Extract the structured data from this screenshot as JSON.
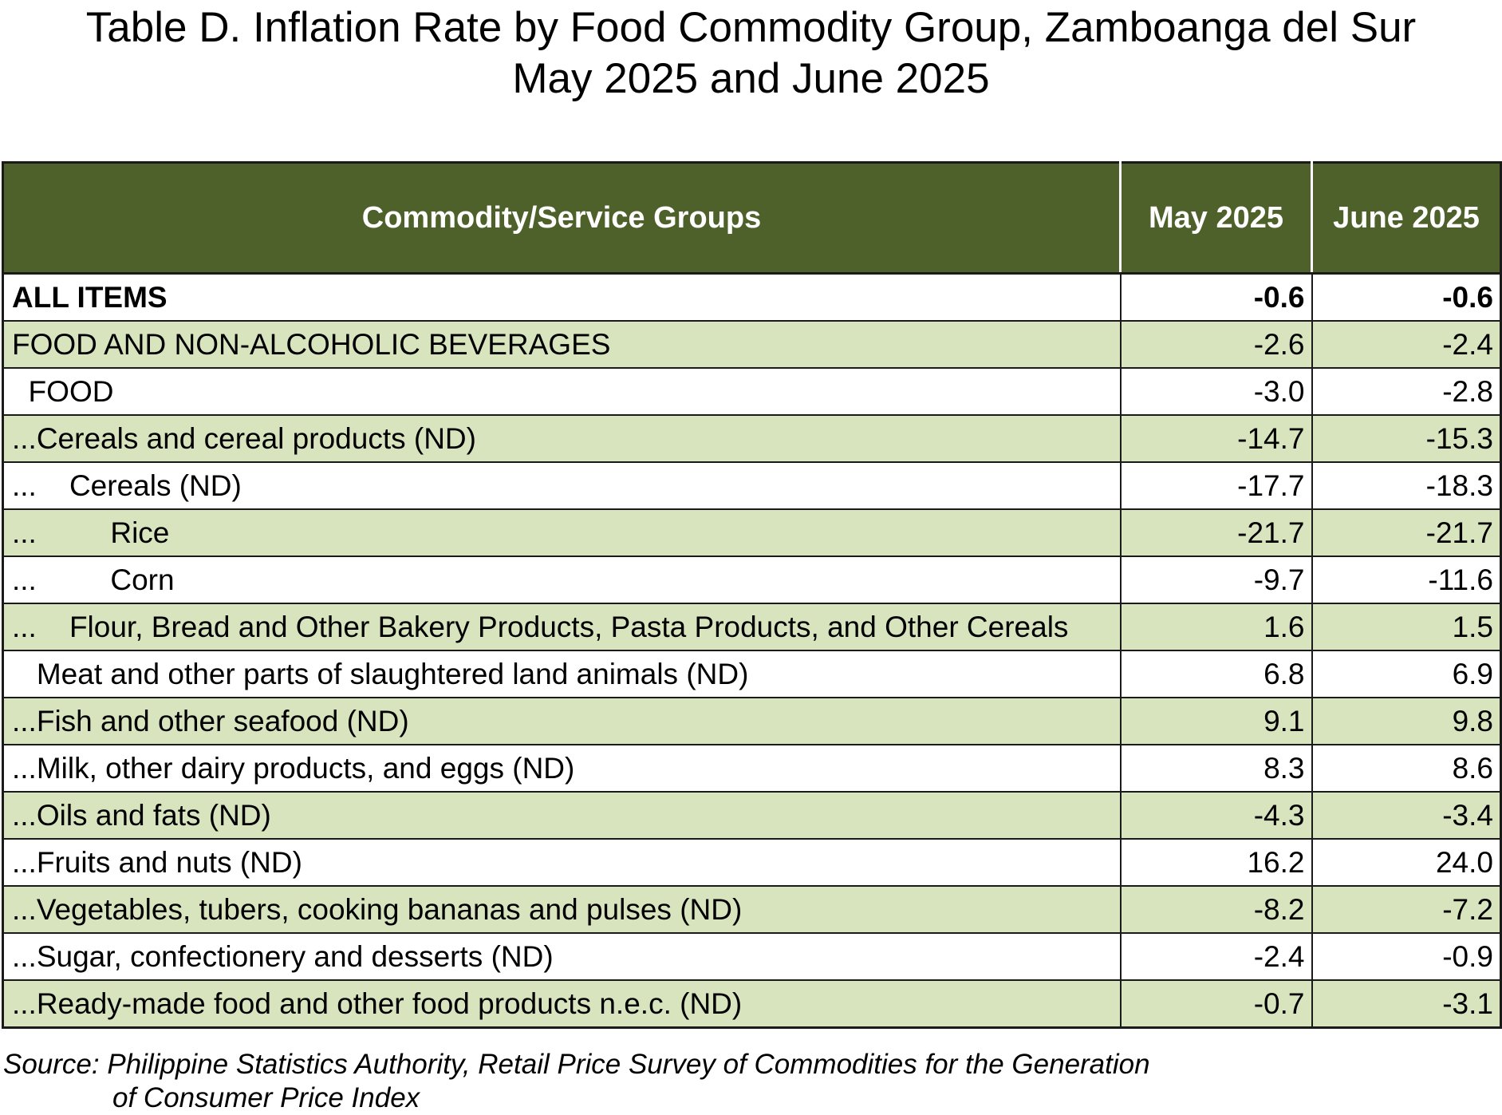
{
  "title": {
    "line1": "Table D. Inflation Rate by Food Commodity Group, Zamboanga del Sur",
    "line2": "May 2025 and June 2025"
  },
  "table": {
    "headers": [
      "Commodity/Service Groups",
      "May 2025",
      "June 2025"
    ],
    "rows": [
      {
        "label": "ALL ITEMS",
        "may": "-0.6",
        "june": "-0.6",
        "bold": true,
        "shaded": false
      },
      {
        "label": "FOOD AND NON-ALCOHOLIC BEVERAGES",
        "may": "-2.6",
        "june": "-2.4",
        "bold": false,
        "shaded": true
      },
      {
        "label": "  FOOD",
        "may": "-3.0",
        "june": "-2.8",
        "bold": false,
        "shaded": false
      },
      {
        "label": "...Cereals and cereal products (ND)",
        "may": "-14.7",
        "june": "-15.3",
        "bold": false,
        "shaded": true
      },
      {
        "label": "...    Cereals (ND)",
        "may": "-17.7",
        "june": "-18.3",
        "bold": false,
        "shaded": false
      },
      {
        "label": "...         Rice",
        "may": "-21.7",
        "june": "-21.7",
        "bold": false,
        "shaded": true
      },
      {
        "label": "...         Corn",
        "may": "-9.7",
        "june": "-11.6",
        "bold": false,
        "shaded": false
      },
      {
        "label": "...    Flour, Bread and Other Bakery Products, Pasta Products, and Other Cereals",
        "may": "1.6",
        "june": "1.5",
        "bold": false,
        "shaded": true
      },
      {
        "label": "   Meat and other parts of slaughtered land animals (ND)",
        "may": "6.8",
        "june": "6.9",
        "bold": false,
        "shaded": false
      },
      {
        "label": "...Fish and other seafood (ND)",
        "may": "9.1",
        "june": "9.8",
        "bold": false,
        "shaded": true
      },
      {
        "label": "...Milk, other dairy products, and eggs (ND)",
        "may": "8.3",
        "june": "8.6",
        "bold": false,
        "shaded": false
      },
      {
        "label": "...Oils and fats (ND)",
        "may": "-4.3",
        "june": "-3.4",
        "bold": false,
        "shaded": true
      },
      {
        "label": "...Fruits and nuts (ND)",
        "may": "16.2",
        "june": "24.0",
        "bold": false,
        "shaded": false
      },
      {
        "label": "...Vegetables, tubers, cooking bananas and pulses (ND)",
        "may": "-8.2",
        "june": "-7.2",
        "bold": false,
        "shaded": true
      },
      {
        "label": "...Sugar, confectionery and desserts (ND)",
        "may": "-2.4",
        "june": "-0.9",
        "bold": false,
        "shaded": false
      },
      {
        "label": "...Ready-made food and other food products n.e.c. (ND)",
        "may": "-0.7",
        "june": "-3.1",
        "bold": false,
        "shaded": true
      }
    ]
  },
  "source": {
    "line1": "Source: Philippine Statistics Authority, Retail Price Survey of Commodities for the Generation",
    "line2": "of Consumer Price Index"
  },
  "colors": {
    "header_bg": "#4f612b",
    "shaded_row_bg": "#d8e4bd"
  }
}
